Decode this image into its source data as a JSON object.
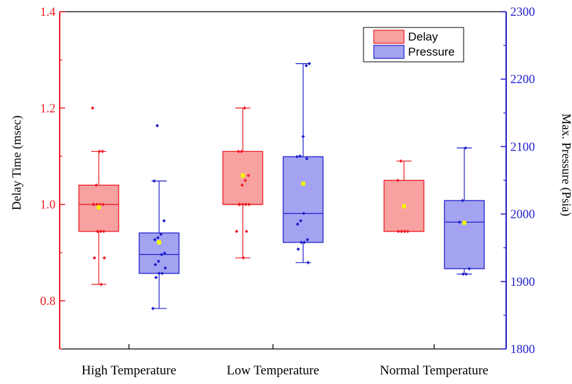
{
  "chart_data": {
    "type": "box",
    "title": "",
    "categories": [
      "High Temperature",
      "Low Temperature",
      "Normal Temperature"
    ],
    "y_left": {
      "label": "Delay Time (msec)",
      "range": [
        0.7,
        1.4
      ],
      "ticks": [
        0.8,
        1.0,
        1.2,
        1.4
      ],
      "tick_labels": [
        "0.8",
        "1.0",
        "1.2",
        "1.4"
      ],
      "color": "#ee1c25"
    },
    "y_right": {
      "label": "Max. Pressure (Psia)",
      "range": [
        1800,
        2300
      ],
      "ticks": [
        1800,
        1900,
        2000,
        2100,
        2200,
        2300
      ],
      "tick_labels": [
        "1800",
        "1900",
        "2000",
        "2100",
        "2200",
        "2300"
      ],
      "color": "#1f1fcc"
    },
    "legend": {
      "position": "top-right",
      "items": [
        {
          "label": "Delay",
          "fill": "#f7a1a1",
          "stroke": "#ee1c25"
        },
        {
          "label": "Pressure",
          "fill": "#a3a3f2",
          "stroke": "#1f1fcc"
        }
      ]
    },
    "mean_marker_color": "#f4f400",
    "series": [
      {
        "name": "Delay",
        "axis": "left",
        "color": "#ee1c25",
        "fill": "#f7a1a1",
        "boxes": [
          {
            "category": "High Temperature",
            "min": 0.834,
            "q1": 0.944,
            "median": 1.0,
            "q3": 1.04,
            "max": 1.11,
            "mean": 0.994,
            "points": [
              1.2,
              1.11,
              1.11,
              1.04,
              1.0,
              1.0,
              1.0,
              1.0,
              1.0,
              0.944,
              0.944,
              0.944,
              0.889,
              0.889,
              0.834
            ]
          },
          {
            "category": "Low Temperature",
            "min": 0.889,
            "q1": 1.0,
            "median": 1.0,
            "q3": 1.11,
            "max": 1.2,
            "mean": 1.06,
            "points": [
              1.2,
              1.11,
              1.11,
              1.06,
              1.05,
              1.04,
              1.0,
              1.0,
              1.0,
              1.0,
              1.0,
              0.944,
              0.944,
              0.889
            ]
          },
          {
            "category": "Normal Temperature",
            "min": 0.944,
            "q1": 0.944,
            "median": 0.944,
            "q3": 1.05,
            "max": 1.09,
            "mean": 0.996,
            "points": [
              1.09,
              1.05,
              0.944,
              0.944,
              0.944,
              0.944
            ]
          }
        ]
      },
      {
        "name": "Pressure",
        "axis": "right",
        "color": "#1f1fcc",
        "fill": "#a3a3f2",
        "boxes": [
          {
            "category": "High Temperature",
            "min": 1860,
            "q1": 1912,
            "median": 1940,
            "q3": 1972,
            "max": 2049,
            "mean": 1958,
            "points": [
              2131,
              2049,
              1990,
              1970,
              1965,
              1962,
              1942,
              1940,
              1930,
              1925,
              1920,
              1912,
              1912,
              1906,
              1860
            ]
          },
          {
            "category": "Low Temperature",
            "min": 1928,
            "q1": 1958,
            "median": 2001,
            "q3": 2085,
            "max": 2223,
            "mean": 2045,
            "points": [
              2223,
              2220,
              2115,
              2086,
              2085,
              2082,
              2001,
              1990,
              1985,
              1962,
              1958,
              1958,
              1948,
              1928
            ]
          },
          {
            "category": "Normal Temperature",
            "min": 1911,
            "q1": 1919,
            "median": 1988,
            "q3": 2020,
            "max": 2098,
            "mean": 1987,
            "points": [
              2098,
              2020,
              1988,
              1919,
              1911,
              1911
            ]
          }
        ]
      }
    ]
  }
}
